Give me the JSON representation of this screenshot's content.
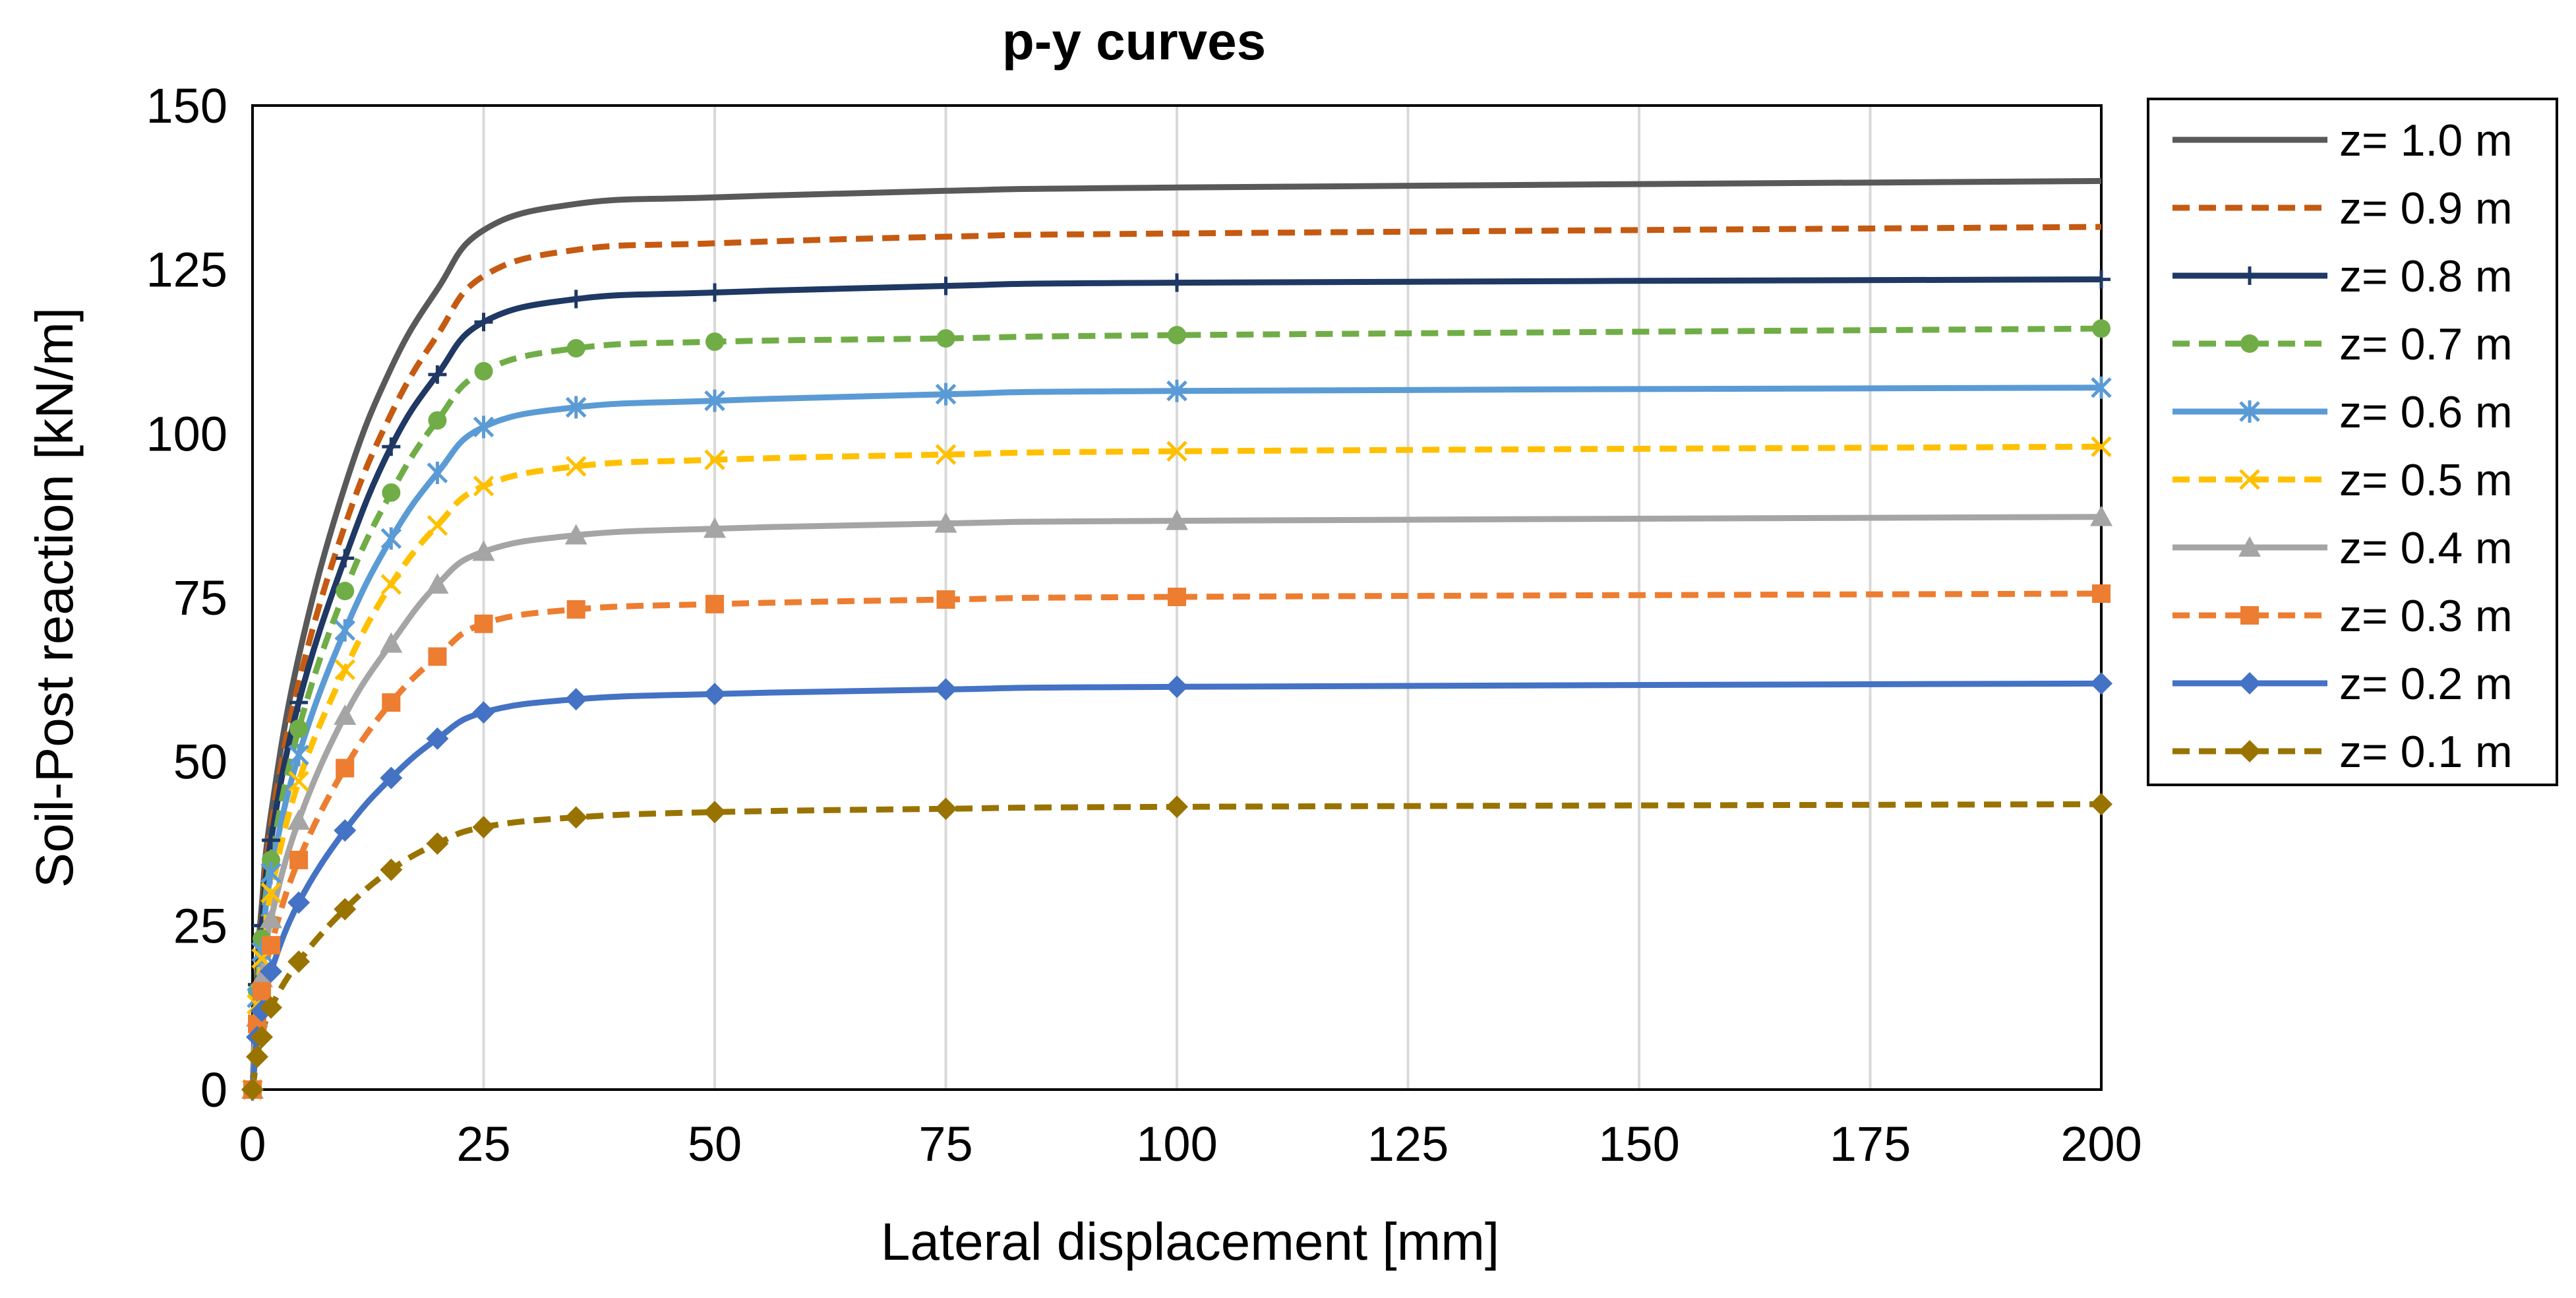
{
  "chart_data": {
    "type": "line",
    "title": "p-y curves",
    "xlabel": "Lateral displacement [mm]",
    "ylabel": "Soil-Post reaction [kN/m]",
    "xlim": [
      0,
      200
    ],
    "ylim": [
      0,
      150
    ],
    "xticks": [
      "0",
      "25",
      "50",
      "75",
      "100",
      "125",
      "150",
      "175",
      "200"
    ],
    "yticks": [
      "0",
      "25",
      "50",
      "75",
      "100",
      "125",
      "150"
    ],
    "grid": "vertical",
    "legend_position": "right",
    "series": [
      {
        "name": "z= 1.0 m",
        "color": "#595959",
        "dash": "solid",
        "marker": "none",
        "x": [
          0,
          0.5,
          1,
          2,
          5,
          10,
          15,
          20,
          25,
          35,
          50,
          75,
          100,
          200
        ],
        "y": [
          0,
          18,
          28,
          42,
          66,
          92,
          110,
          122,
          131,
          135,
          136,
          137,
          137.5,
          138.5
        ]
      },
      {
        "name": "z= 0.9 m",
        "color": "#c55a11",
        "dash": "dashed",
        "marker": "none",
        "x": [
          0,
          0.5,
          1,
          2,
          5,
          10,
          15,
          20,
          25,
          35,
          50,
          75,
          100,
          200
        ],
        "y": [
          0,
          17,
          26,
          40,
          62,
          86,
          103,
          115,
          124,
          128,
          129,
          130,
          130.5,
          131.5
        ]
      },
      {
        "name": "z= 0.8 m",
        "color": "#1f3864",
        "dash": "solid",
        "marker": "plus",
        "x": [
          0,
          0.5,
          1,
          2,
          5,
          10,
          15,
          20,
          25,
          35,
          50,
          75,
          100,
          200
        ],
        "y": [
          0,
          16,
          25,
          38,
          59,
          81,
          98,
          109,
          117,
          120.5,
          121.5,
          122.5,
          123,
          123.5
        ]
      },
      {
        "name": "z= 0.7 m",
        "color": "#70ad47",
        "dash": "dashed",
        "marker": "circle",
        "x": [
          0,
          0.5,
          1,
          2,
          5,
          10,
          15,
          20,
          25,
          35,
          50,
          75,
          100,
          200
        ],
        "y": [
          0,
          15,
          23,
          35,
          55,
          76,
          91,
          102,
          109.5,
          113,
          114,
          114.5,
          115,
          116
        ]
      },
      {
        "name": "z= 0.6 m",
        "color": "#5b9bd5",
        "dash": "solid",
        "marker": "asterisk",
        "x": [
          0,
          0.5,
          1,
          2,
          5,
          10,
          15,
          20,
          25,
          35,
          50,
          75,
          100,
          200
        ],
        "y": [
          0,
          14,
          21,
          33,
          51,
          70,
          84,
          94,
          101,
          104,
          105,
          106,
          106.5,
          107
        ]
      },
      {
        "name": "z= 0.5 m",
        "color": "#ffc000",
        "dash": "dashed",
        "marker": "x",
        "x": [
          0,
          0.5,
          1,
          2,
          5,
          10,
          15,
          20,
          25,
          35,
          50,
          75,
          100,
          200
        ],
        "y": [
          0,
          13,
          20,
          30,
          47,
          64,
          77,
          86,
          92,
          95,
          96,
          96.8,
          97.3,
          98
        ]
      },
      {
        "name": "z= 0.4 m",
        "color": "#a5a5a5",
        "dash": "solid",
        "marker": "triangle",
        "x": [
          0,
          0.5,
          1,
          2,
          5,
          10,
          15,
          20,
          25,
          35,
          50,
          75,
          100,
          200
        ],
        "y": [
          0,
          11,
          17,
          26,
          41,
          57,
          68,
          77,
          82,
          84.5,
          85.5,
          86.3,
          86.7,
          87.3
        ]
      },
      {
        "name": "z= 0.3 m",
        "color": "#ed7d31",
        "dash": "dashed",
        "marker": "square",
        "x": [
          0,
          0.5,
          1,
          2,
          5,
          10,
          15,
          20,
          25,
          35,
          50,
          75,
          100,
          200
        ],
        "y": [
          0,
          10,
          15,
          22,
          35,
          49,
          59,
          66,
          71,
          73.2,
          74,
          74.7,
          75.1,
          75.6
        ]
      },
      {
        "name": "z= 0.2 m",
        "color": "#4472c4",
        "dash": "solid",
        "marker": "diamond",
        "x": [
          0,
          0.5,
          1,
          2,
          5,
          10,
          15,
          20,
          25,
          35,
          50,
          75,
          100,
          200
        ],
        "y": [
          0,
          8,
          12,
          18,
          28.5,
          39.5,
          47.5,
          53.5,
          57.5,
          59.5,
          60.3,
          61,
          61.4,
          61.9
        ]
      },
      {
        "name": "z= 0.1 m",
        "color": "#997300",
        "dash": "dashed",
        "marker": "diamond",
        "x": [
          0,
          0.5,
          1,
          2,
          5,
          10,
          15,
          20,
          25,
          35,
          50,
          75,
          100,
          200
        ],
        "y": [
          0,
          5,
          8,
          12.5,
          19.5,
          27.5,
          33.5,
          37.5,
          40,
          41.5,
          42.3,
          42.8,
          43.1,
          43.5
        ]
      }
    ]
  }
}
